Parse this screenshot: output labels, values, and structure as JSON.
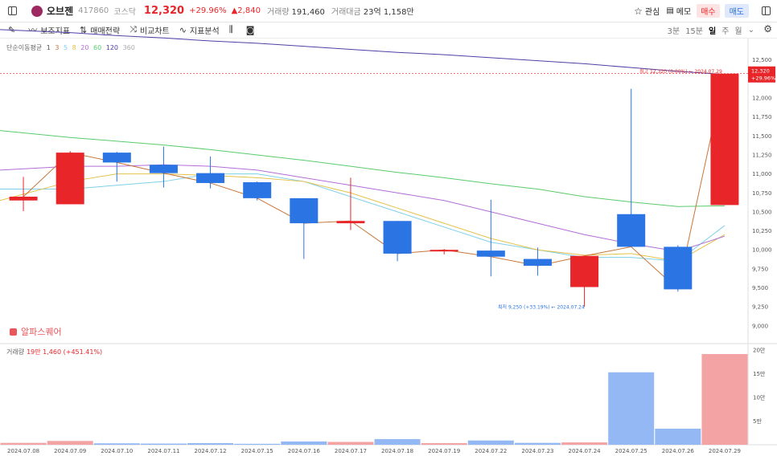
{
  "header": {
    "stock_name": "오브젠",
    "stock_code": "417860",
    "market": "코스닥",
    "price": "12,320",
    "change_pct": "+29.96%",
    "change_amt": "▲2,840",
    "volume_label": "거래량",
    "volume_value": "191,460",
    "amount_label": "거래대금",
    "amount_value": "23억 1,158만",
    "watch_label": "관심",
    "memo_label": "메모",
    "buy_label": "매수",
    "sell_label": "매도"
  },
  "toolbar": {
    "items": [
      "보조지표",
      "매매전략",
      "비교차트",
      "지표분석"
    ],
    "timeframes": [
      "3분",
      "15분",
      "일",
      "주",
      "월"
    ],
    "selected_timeframe": "일"
  },
  "ma_legend": {
    "label": "단순이동평균",
    "periods": [
      "1",
      "3",
      "5",
      "8",
      "20",
      "60",
      "120",
      "360"
    ],
    "colors": [
      "#555555",
      "#c7773a",
      "#7fd0e8",
      "#e4c24b",
      "#b36ed6",
      "#5acb6c",
      "#4f3fa6",
      "#999999"
    ]
  },
  "price_axis": [
    "12,500",
    "12,000",
    "11,750",
    "11,500",
    "11,250",
    "11,000",
    "10,750",
    "10,500",
    "10,250",
    "10,000",
    "9,750",
    "9,500",
    "9,250",
    "9,000"
  ],
  "price_axis_values": [
    12500,
    12000,
    11750,
    11500,
    11250,
    11000,
    10750,
    10500,
    10250,
    10000,
    9750,
    9500,
    9250,
    9000
  ],
  "current_price_tag": {
    "price": "12,320",
    "pct": "+29.96%"
  },
  "annotations": {
    "high": "최고 12,320 (0.00%) ← 2024.07.29",
    "low": "최저 9,250 (+33.19%) ← 2024.07.24"
  },
  "watermark": "알파스퀘어",
  "volume_legend": {
    "label": "거래량",
    "value": "19만 1,460 (+451.41%)"
  },
  "volume_axis": [
    "20만",
    "15만",
    "10만",
    "5만"
  ],
  "volume_axis_values": [
    200000,
    150000,
    100000,
    50000
  ],
  "dates": [
    "2024.07.08",
    "2024.07.09",
    "2024.07.10",
    "2024.07.11",
    "2024.07.12",
    "2024.07.15",
    "2024.07.16",
    "2024.07.17",
    "2024.07.18",
    "2024.07.19",
    "2024.07.22",
    "2024.07.23",
    "2024.07.24",
    "2024.07.25",
    "2024.07.26",
    "2024.07.29"
  ],
  "chart_data": {
    "type": "candlestick",
    "x": [
      "2024.07.08",
      "2024.07.09",
      "2024.07.10",
      "2024.07.11",
      "2024.07.12",
      "2024.07.15",
      "2024.07.16",
      "2024.07.17",
      "2024.07.18",
      "2024.07.19",
      "2024.07.22",
      "2024.07.23",
      "2024.07.24",
      "2024.07.25",
      "2024.07.26",
      "2024.07.29"
    ],
    "open": [
      10650,
      10600,
      11280,
      11120,
      11010,
      10890,
      10680,
      10350,
      10380,
      9980,
      9990,
      9880,
      9510,
      10470,
      10040,
      10590
    ],
    "high": [
      10960,
      11300,
      11290,
      11360,
      11230,
      10900,
      10680,
      10950,
      10380,
      10010,
      10660,
      10030,
      9920,
      12120,
      10060,
      12320
    ],
    "low": [
      10510,
      10600,
      10900,
      10820,
      10810,
      10650,
      9880,
      10260,
      9850,
      9940,
      9650,
      9660,
      9250,
      10040,
      9450,
      10590
    ],
    "close": [
      10700,
      11280,
      11150,
      11010,
      10880,
      10680,
      10350,
      10380,
      9950,
      10000,
      9910,
      9790,
      9920,
      10040,
      9480,
      12320
    ],
    "volume": [
      4000,
      8000,
      3000,
      2500,
      3500,
      2000,
      7000,
      6000,
      12000,
      3500,
      9000,
      4000,
      5000,
      153000,
      34000,
      191460
    ],
    "ylim": [
      9000,
      12600
    ],
    "volume_ylim": [
      0,
      200000
    ],
    "ma_lines": {
      "MA5": [
        10800,
        10800,
        10850,
        10900,
        11000,
        11000,
        10900,
        10700,
        10500,
        10300,
        10100,
        10000,
        9900,
        9900,
        9850,
        10320
      ],
      "MA8": [
        10650,
        10900,
        11000,
        11000,
        10980,
        10950,
        10900,
        10750,
        10550,
        10350,
        10150,
        10000,
        9930,
        9950,
        9850,
        10200
      ],
      "MA20": [
        11050,
        11100,
        11100,
        11120,
        11100,
        11050,
        10950,
        10850,
        10750,
        10650,
        10500,
        10350,
        10200,
        10080,
        9980,
        10180
      ],
      "MA60": [
        11570,
        11480,
        11430,
        11380,
        11320,
        11250,
        11180,
        11100,
        11020,
        10950,
        10870,
        10800,
        10700,
        10630,
        10570,
        10580
      ],
      "MA120": [
        12900,
        12860,
        12820,
        12790,
        12750,
        12720,
        12680,
        12640,
        12600,
        12570,
        12530,
        12490,
        12450,
        12400,
        12350,
        12310
      ]
    }
  }
}
